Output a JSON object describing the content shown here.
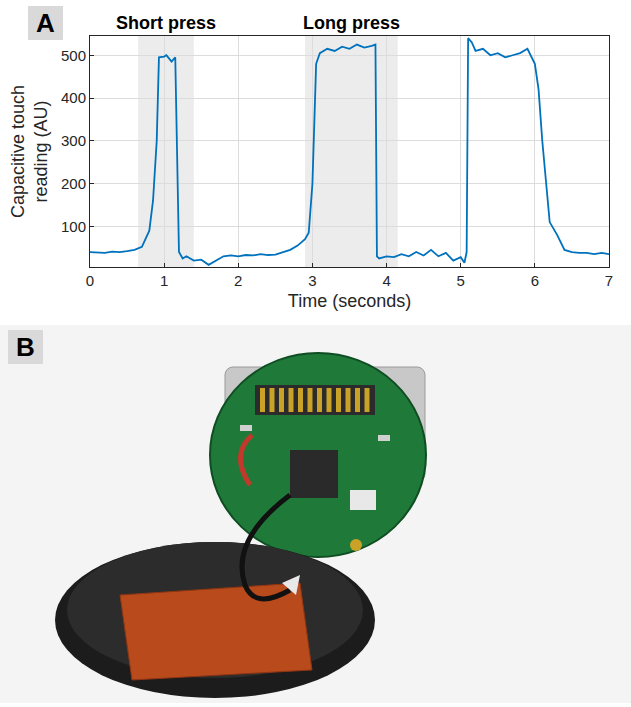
{
  "panel_labels": [
    "A",
    "B"
  ],
  "chart_data": {
    "type": "line",
    "y_label": "Capacitive touch reading (AU)",
    "x_label": "Time (seconds)",
    "x": [
      0,
      0.2,
      0.3,
      0.4,
      0.5,
      0.6,
      0.7,
      0.8,
      0.85,
      0.9,
      0.93,
      1.0,
      1.03,
      1.1,
      1.15,
      1.2,
      1.25,
      1.3,
      1.4,
      1.5,
      1.6,
      1.7,
      1.8,
      1.9,
      2.0,
      2.1,
      2.2,
      2.3,
      2.4,
      2.5,
      2.6,
      2.7,
      2.8,
      2.9,
      2.95,
      3.0,
      3.05,
      3.1,
      3.2,
      3.3,
      3.4,
      3.5,
      3.6,
      3.7,
      3.8,
      3.85,
      3.87,
      3.9,
      4.0,
      4.1,
      4.2,
      4.3,
      4.4,
      4.5,
      4.6,
      4.7,
      4.8,
      4.9,
      5.0,
      5.05,
      5.08,
      5.1,
      5.15,
      5.2,
      5.3,
      5.4,
      5.5,
      5.6,
      5.7,
      5.8,
      5.9,
      6.0,
      6.05,
      6.1,
      6.2,
      6.3,
      6.4,
      6.5,
      6.6,
      6.7,
      6.8,
      6.9,
      7.0
    ],
    "values": [
      40,
      38,
      41,
      40,
      42,
      45,
      52,
      90,
      160,
      300,
      495,
      497,
      500,
      485,
      495,
      40,
      25,
      30,
      20,
      22,
      10,
      20,
      30,
      32,
      30,
      33,
      32,
      35,
      33,
      34,
      40,
      45,
      55,
      70,
      85,
      200,
      480,
      505,
      515,
      510,
      520,
      515,
      525,
      518,
      522,
      525,
      30,
      25,
      30,
      28,
      35,
      30,
      40,
      32,
      45,
      30,
      38,
      20,
      28,
      15,
      40,
      540,
      530,
      510,
      515,
      500,
      505,
      495,
      500,
      505,
      515,
      480,
      420,
      300,
      110,
      80,
      45,
      40,
      38,
      38,
      35,
      38,
      35
    ],
    "color": "#0072bd",
    "xlim": [
      0,
      7
    ],
    "xticks": [
      0,
      1,
      2,
      3,
      4,
      5,
      6,
      7
    ],
    "ylim": [
      5,
      545
    ],
    "yticks": [
      100,
      200,
      300,
      400,
      500
    ],
    "grid": true,
    "highlights": [
      {
        "label": "Short press",
        "x0": 0.65,
        "x1": 1.4
      },
      {
        "label": "Long press",
        "x0": 2.9,
        "x1": 4.15
      }
    ]
  }
}
